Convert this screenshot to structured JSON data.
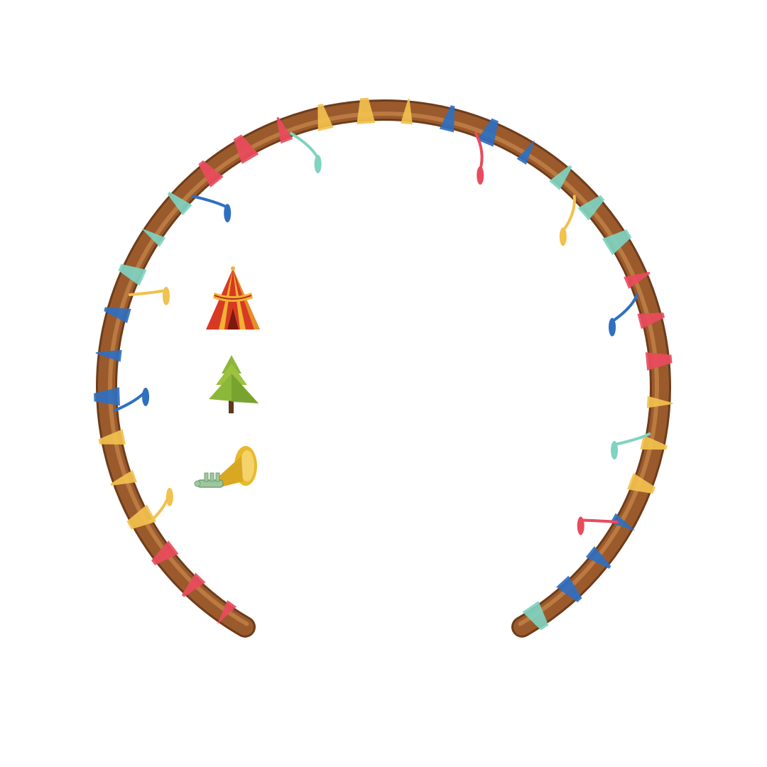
{
  "scene": {
    "background": "#ffffff"
  },
  "hoop": {
    "wood_color": "#9a5a2c",
    "wood_highlight": "#c8874a",
    "wood_shadow": "#6e3c1a",
    "ribbon_colors": [
      "#e94b5c",
      "#f2c14e",
      "#2f6fc0",
      "#7fd3c0"
    ],
    "icon": "ribbon-wrapped-hoop"
  },
  "inventory": {
    "items": [
      {
        "icon": "circus-tent-icon",
        "colors": [
          "#d63a22",
          "#f2b134"
        ]
      },
      {
        "icon": "pine-tree-icon",
        "colors": [
          "#8cb83a",
          "#5b3a1e"
        ]
      },
      {
        "icon": "trumpet-icon",
        "colors": [
          "#e8b92c",
          "#9fc7a0"
        ]
      }
    ]
  }
}
